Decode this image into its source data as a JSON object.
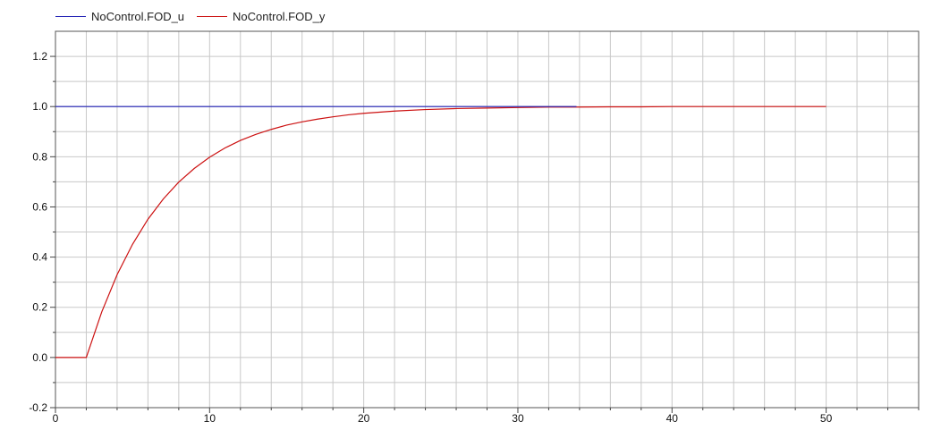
{
  "chart_data": {
    "type": "line",
    "title": "",
    "xlabel": "",
    "ylabel": "",
    "xlim": [
      0,
      56
    ],
    "ylim": [
      -0.2,
      1.3
    ],
    "grid": true,
    "legend_position": "top-left",
    "x_ticks": [
      0,
      10,
      20,
      30,
      40,
      50
    ],
    "x_tick_labels": [
      "0",
      "10",
      "20",
      "30",
      "40",
      "50"
    ],
    "y_ticks": [
      -0.2,
      0.0,
      0.2,
      0.4,
      0.6,
      0.8,
      1.0,
      1.2
    ],
    "y_tick_labels": [
      "-0.2",
      "0.0",
      "0.2",
      "0.4",
      "0.6",
      "0.8",
      "1.0",
      "1.2"
    ],
    "series": [
      {
        "name": "NoControl.FOD_u",
        "color": "#1f1fb4",
        "x": [
          0,
          5,
          10,
          15,
          20,
          25,
          30,
          33.8
        ],
        "y": [
          1.0,
          1.0,
          1.0,
          1.0,
          1.0,
          1.0,
          1.0,
          1.0
        ]
      },
      {
        "name": "NoControl.FOD_y",
        "color": "#cc1111",
        "x": [
          0,
          1,
          2,
          3,
          4,
          5,
          6,
          7,
          8,
          9,
          10,
          11,
          12,
          13,
          14,
          15,
          16,
          17,
          18,
          19,
          20,
          22,
          24,
          26,
          28,
          30,
          32,
          34,
          36,
          38,
          40,
          42,
          44,
          46,
          48,
          50
        ],
        "y": [
          0.0,
          0.0,
          0.0,
          0.181,
          0.33,
          0.451,
          0.551,
          0.632,
          0.699,
          0.753,
          0.798,
          0.835,
          0.865,
          0.889,
          0.909,
          0.926,
          0.939,
          0.95,
          0.959,
          0.967,
          0.973,
          0.982,
          0.988,
          0.992,
          0.994,
          0.996,
          0.998,
          0.998,
          0.999,
          0.999,
          1.0,
          1.0,
          1.0,
          1.0,
          1.0,
          1.0
        ]
      }
    ]
  }
}
